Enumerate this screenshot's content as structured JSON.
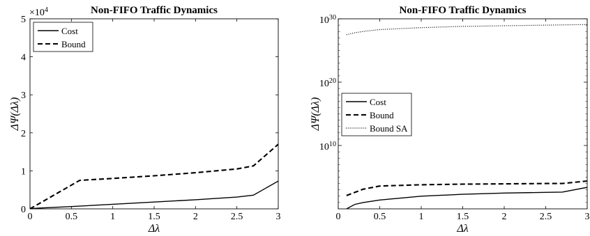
{
  "chart_data": [
    {
      "type": "line",
      "title": "Non-FIFO Traffic Dynamics",
      "xlabel": "Δλ",
      "ylabel": "ΔΨ(Δλ)",
      "multiplier": "×10",
      "multiplier_exp": "4",
      "xlim": [
        0,
        3
      ],
      "ylim": [
        0,
        5
      ],
      "xticks": [
        "0",
        "0.5",
        "1",
        "1.5",
        "2",
        "2.5",
        "3"
      ],
      "yticks": [
        "0",
        "1",
        "2",
        "3",
        "4",
        "5"
      ],
      "legend_position": "top-left",
      "series": [
        {
          "name": "Cost",
          "style": "solid",
          "x": [
            0,
            0.1,
            0.5,
            1.0,
            1.5,
            2.0,
            2.5,
            2.7,
            3.0
          ],
          "y": [
            0,
            0.02,
            0.06,
            0.12,
            0.18,
            0.24,
            0.31,
            0.36,
            0.73
          ]
        },
        {
          "name": "Bound",
          "style": "dashed",
          "x": [
            0,
            0.6,
            1.0,
            1.5,
            2.0,
            2.5,
            2.7,
            3.0
          ],
          "y": [
            0,
            0.75,
            0.8,
            0.87,
            0.95,
            1.05,
            1.13,
            1.7
          ]
        }
      ]
    },
    {
      "type": "line",
      "title": "Non-FIFO Traffic Dynamics",
      "xlabel": "Δλ",
      "ylabel": "ΔΨ(Δλ)",
      "yscale": "log",
      "xlim": [
        0,
        3
      ],
      "ylim_log10": [
        0,
        30
      ],
      "xticks": [
        "0",
        "0.5",
        "1",
        "1.5",
        "2",
        "2.5",
        "3"
      ],
      "yticks": [
        {
          "base": "10",
          "exp": "10"
        },
        {
          "base": "10",
          "exp": "20"
        },
        {
          "base": "10",
          "exp": "30"
        }
      ],
      "legend_position": "center-left",
      "series": [
        {
          "name": "Cost",
          "style": "solid",
          "x": [
            0.1,
            0.2,
            0.3,
            0.5,
            1.0,
            1.5,
            2.0,
            2.5,
            2.7,
            3.0
          ],
          "log10_y": [
            0,
            0.7,
            1.0,
            1.4,
            2.0,
            2.3,
            2.5,
            2.6,
            2.65,
            3.4
          ]
        },
        {
          "name": "Bound",
          "style": "dashed",
          "x": [
            0.1,
            0.3,
            0.5,
            1.0,
            1.5,
            2.0,
            2.5,
            2.7,
            3.0
          ],
          "log10_y": [
            2.1,
            3.1,
            3.6,
            3.8,
            3.9,
            3.95,
            4.0,
            4.0,
            4.4
          ]
        },
        {
          "name": "Bound SA",
          "style": "dotted",
          "x": [
            0.1,
            0.2,
            0.3,
            0.5,
            1.0,
            1.5,
            2.0,
            2.5,
            3.0
          ],
          "log10_y": [
            27.5,
            27.8,
            28.0,
            28.3,
            28.6,
            28.8,
            28.9,
            29.0,
            29.1
          ]
        }
      ]
    }
  ]
}
